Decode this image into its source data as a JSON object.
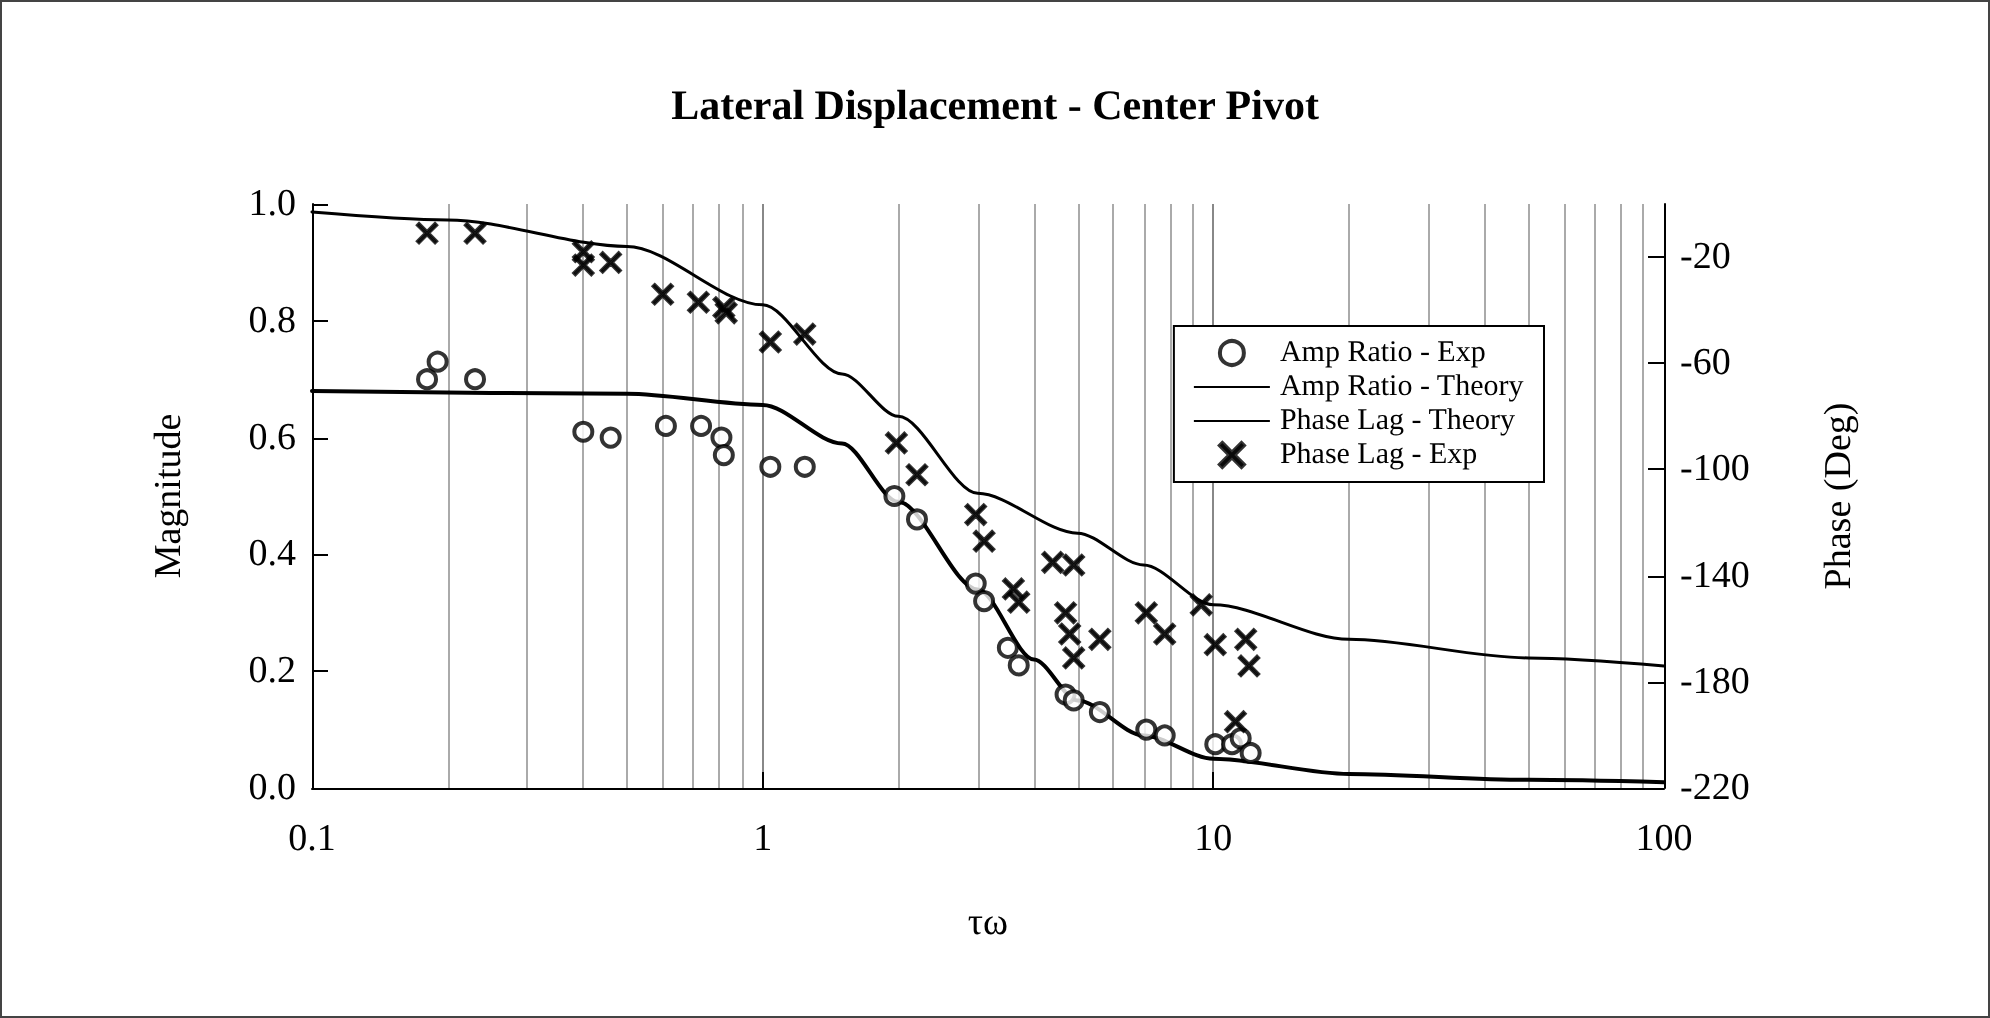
{
  "chart_data": {
    "type": "line",
    "title": "Lateral Displacement - Center Pivot",
    "xlabel": "τω",
    "ylabel": "Magnitude",
    "y2label": "Phase (Deg)",
    "log": "x",
    "grid": "x",
    "legend": "right",
    "line_style": "solid",
    "xlim": [
      0.1,
      100
    ],
    "xticks": [
      0.1,
      1,
      10,
      100
    ],
    "ylim": [
      0,
      1
    ],
    "yticks": [
      {
        "value": 0,
        "label": "0.0"
      },
      {
        "value": 0.2,
        "label": "0.2"
      },
      {
        "value": 0.4,
        "label": "0.4"
      },
      {
        "value": 0.6,
        "label": "0.6"
      },
      {
        "value": 0.8,
        "label": "0.8"
      },
      {
        "value": 1,
        "label": "1.0"
      }
    ],
    "y2lim": [
      -220,
      0
    ],
    "y2ticks": [
      -220,
      -180,
      -140,
      -100,
      -60,
      -20
    ],
    "series": [
      {
        "name": "Amp Ratio - Exp",
        "type": "scatter",
        "marker": "circle",
        "color": "#000000",
        "x": [
          0.18,
          0.19,
          0.23,
          0.4,
          0.46,
          0.61,
          0.73,
          0.81,
          0.82,
          1.04,
          1.24,
          1.96,
          2.2,
          2.97,
          3.1,
          3.5,
          3.7,
          4.7,
          4.9,
          5.6,
          7.1,
          7.8,
          10.1,
          11,
          11.5,
          12.1
        ],
        "values": [
          0.7,
          0.73,
          0.7,
          0.61,
          0.6,
          0.62,
          0.62,
          0.6,
          0.57,
          0.55,
          0.55,
          0.5,
          0.46,
          0.35,
          0.32,
          0.24,
          0.21,
          0.16,
          0.15,
          0.13,
          0.1,
          0.09,
          0.075,
          0.075,
          0.085,
          0.06
        ]
      },
      {
        "name": "Amp Ratio - Theory",
        "marker": "none",
        "color": "#000000",
        "x": [
          0.1,
          0.5,
          1,
          1.5,
          2,
          3,
          4,
          5,
          7,
          10,
          20,
          50,
          100
        ],
        "values": [
          0.68,
          0.675,
          0.656,
          0.59,
          0.49,
          0.34,
          0.22,
          0.15,
          0.09,
          0.05,
          0.024,
          0.014,
          0.01
        ]
      },
      {
        "name": "Phase Lag - Theory",
        "marker": "none",
        "color": "#000000",
        "x": [
          0.1,
          0.2,
          0.5,
          1,
          1.5,
          2,
          3,
          5,
          7,
          10,
          20,
          50,
          100
        ],
        "values": [
          -3,
          -6,
          -16,
          -38,
          -64,
          -80,
          -109,
          -124,
          -136,
          -151,
          -164,
          -171,
          -174
        ],
        "axis": "y2"
      },
      {
        "name": "Phase Lag - Exp",
        "type": "scatter",
        "marker": "cross",
        "color": "#000000",
        "x": [
          0.18,
          0.23,
          0.4,
          0.4,
          0.46,
          0.6,
          0.72,
          0.82,
          0.83,
          1.04,
          1.24,
          1.98,
          2.2,
          2.97,
          3.1,
          4.4,
          4.9,
          3.6,
          3.7,
          4.7,
          4.8,
          4.9,
          5.6,
          7.1,
          7.8,
          9.4,
          10.1,
          11.8,
          12,
          11.2
        ],
        "values": [
          -11,
          -11,
          -18,
          -23,
          -22,
          -34,
          -37,
          -39,
          -41,
          -52,
          -49,
          -90,
          -102,
          -117,
          -127,
          -135,
          -136,
          -145,
          -150,
          -154,
          -162,
          -171,
          -164,
          -154,
          -162,
          -151,
          -166,
          -164,
          -174,
          -195
        ],
        "axis": "y2"
      }
    ]
  }
}
